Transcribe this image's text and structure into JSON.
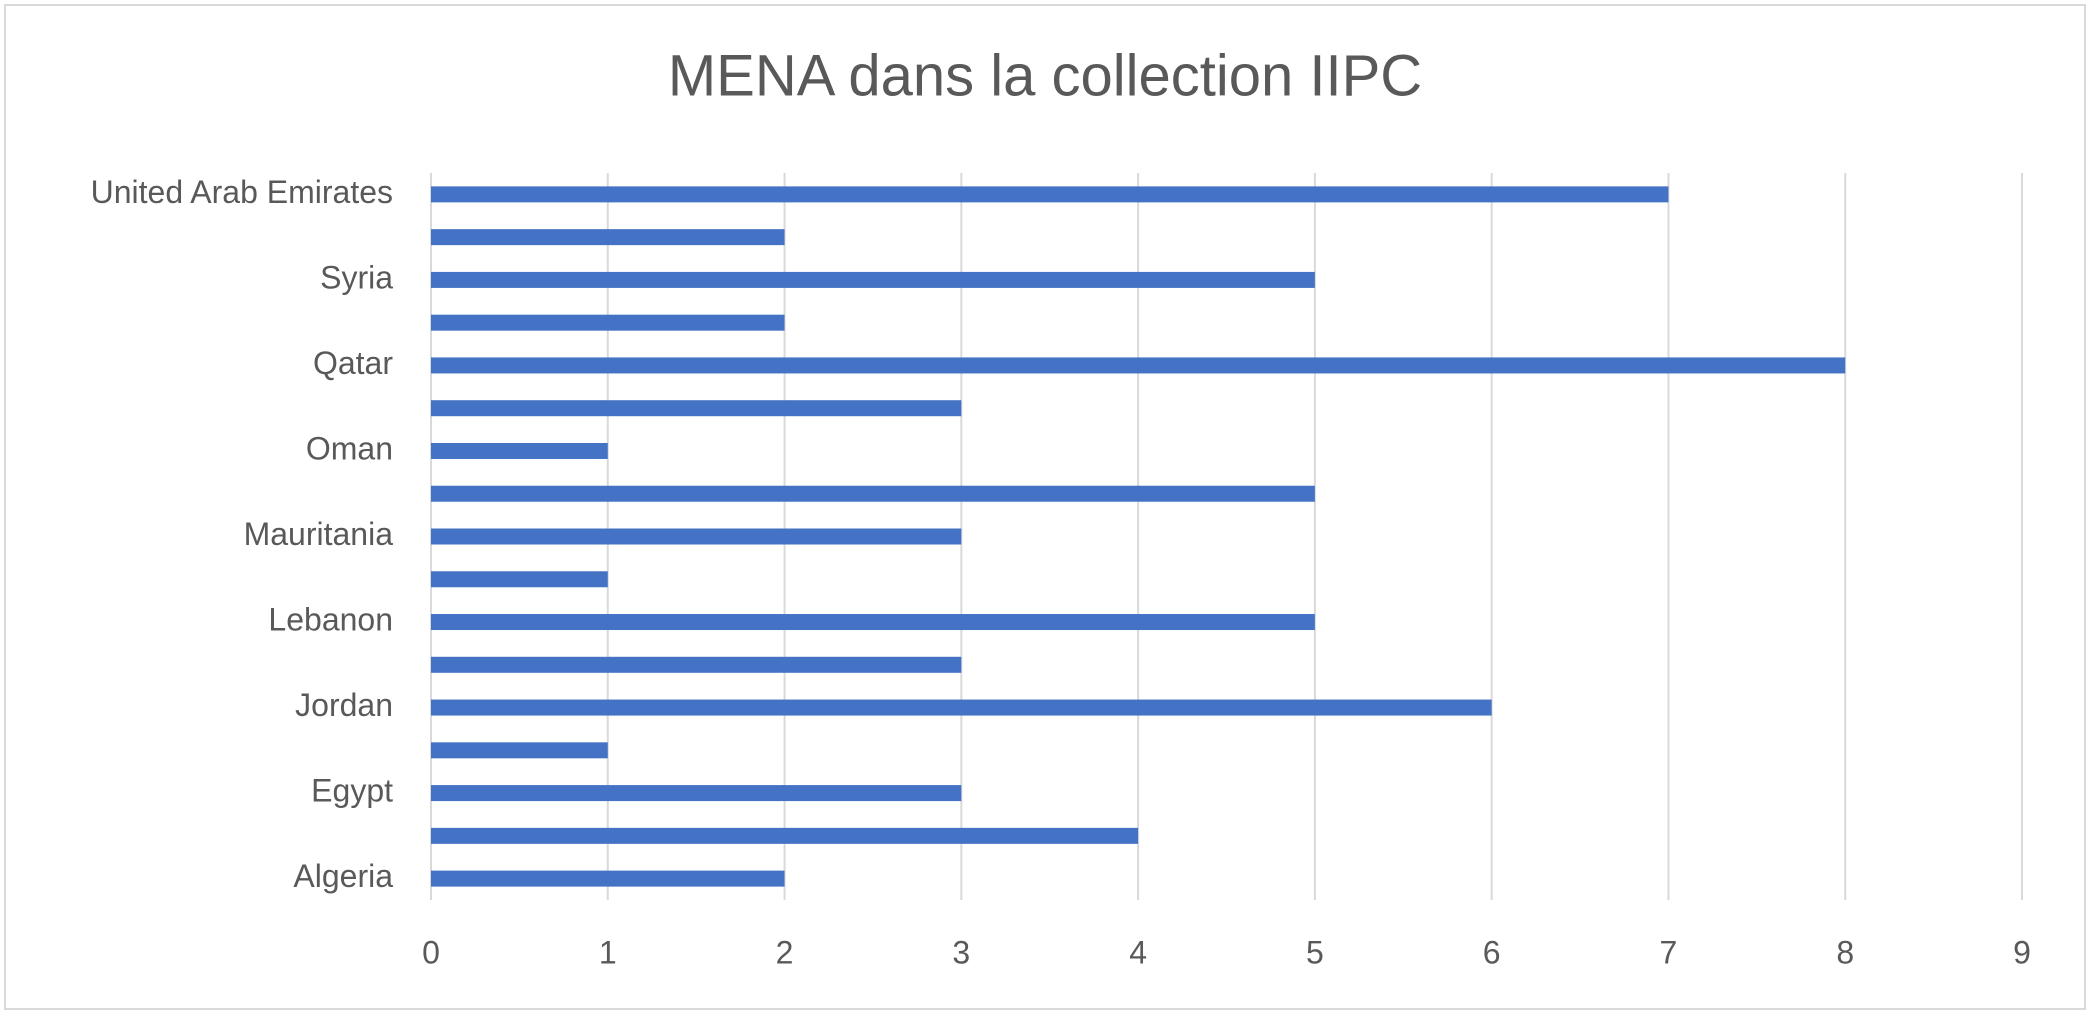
{
  "chart_data": {
    "type": "bar",
    "title": "MENA dans la collection IIPC",
    "categories": [
      "Algeria",
      null,
      "Egypt",
      null,
      "Jordan",
      null,
      "Lebanon",
      null,
      "Mauritania",
      null,
      "Oman",
      null,
      "Qatar",
      null,
      "Syria",
      null,
      "United Arab Emirates"
    ],
    "values": [
      2,
      4,
      3,
      1,
      6,
      3,
      5,
      1,
      3,
      5,
      1,
      3,
      8,
      2,
      5,
      2,
      7
    ],
    "color": "#4472c4",
    "xlim": [
      0,
      9
    ],
    "xticks": [
      0,
      1,
      2,
      3,
      4,
      5,
      6,
      7,
      8,
      9
    ],
    "grid": true
  }
}
